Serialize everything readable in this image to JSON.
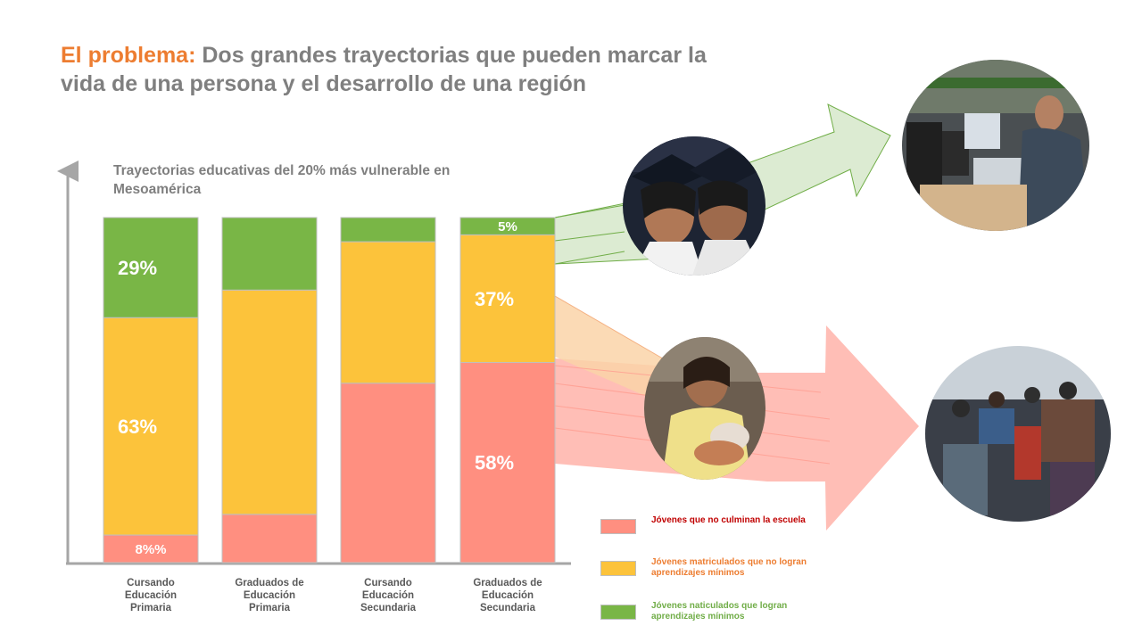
{
  "slide": {
    "title_accent": "El problema:",
    "title_rest": " Dos grandes trayectorias que pueden marcar la vida de una persona y el desarrollo de una región"
  },
  "chart_data": {
    "type": "bar",
    "stacked": true,
    "title": "Trayectorias educativas del 20% más vulnerable en Mesoamérica",
    "categories": [
      "Cursando Educación Primaria",
      "Graduados de Educación Primaria",
      "Cursando Educación Secundaria",
      "Graduados de Educación Secundaria"
    ],
    "series": [
      {
        "name": "Jóvenes que no culminan la escuela",
        "color": "#FF8F80",
        "values": [
          8,
          14,
          52,
          58
        ],
        "labels": [
          "8%%",
          "",
          "",
          "58%"
        ]
      },
      {
        "name": "Jóvenes matriculados que no logran aprendizajes mínimos",
        "color": "#FCC33B",
        "values": [
          63,
          65,
          41,
          37
        ],
        "labels": [
          "63%",
          "",
          "",
          "37%"
        ]
      },
      {
        "name": "Jóvenes naticulados que logran aprendizajes mínimos",
        "color": "#79B646",
        "values": [
          29,
          21,
          7,
          5
        ],
        "labels": [
          "29%",
          "",
          "",
          "5%"
        ]
      }
    ],
    "legend_label_colors": [
      "#C00000",
      "#ED7D31",
      "#70AD47"
    ],
    "ylim": [
      0,
      100
    ],
    "grid": false,
    "legend_position": "bottom-right"
  },
  "photos": [
    {
      "name": "graduates-photo"
    },
    {
      "name": "office-workers-photo"
    },
    {
      "name": "mother-child-photo"
    },
    {
      "name": "migrants-photo"
    }
  ],
  "colors": {
    "accent": "#ED7D31",
    "text_gray": "#7F7F7F",
    "arrow_green": "#D9EAD3",
    "arrow_red": "#FFB7AE"
  }
}
